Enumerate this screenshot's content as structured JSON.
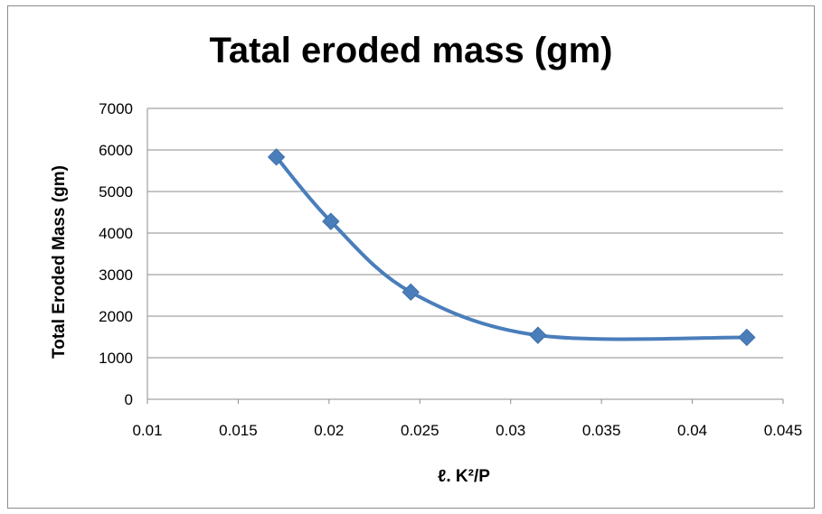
{
  "chart_data": {
    "type": "scatter",
    "title": "Tatal eroded mass (gm)",
    "xlabel": "ℓ. K²/P",
    "ylabel": "Total Eroded Mass (gm)",
    "xlim": [
      0.01,
      0.045
    ],
    "ylim": [
      0,
      7000
    ],
    "x_ticks": [
      "0.01",
      "0.015",
      "0.02",
      "0.025",
      "0.03",
      "0.035",
      "0.04",
      "0.045"
    ],
    "y_ticks": [
      "0",
      "1000",
      "2000",
      "3000",
      "4000",
      "5000",
      "6000",
      "7000"
    ],
    "grid": "horizontal",
    "line": "smooth",
    "marker": "diamond",
    "color": "#4a7ebb",
    "series": [
      {
        "x": [
          0.0171,
          0.0201,
          0.0245,
          0.0315,
          0.043
        ],
        "y": [
          5830,
          4280,
          2580,
          1540,
          1490
        ]
      }
    ]
  }
}
